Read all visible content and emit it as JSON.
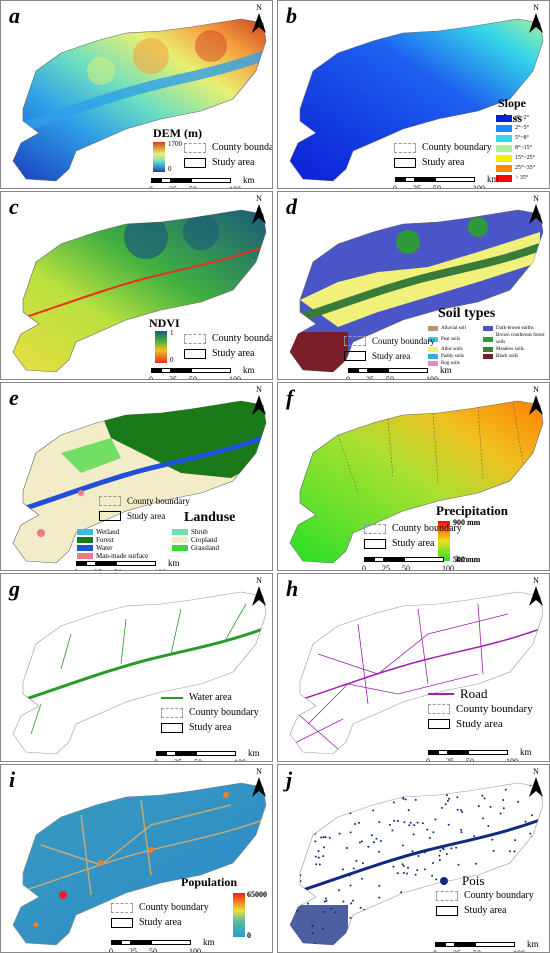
{
  "panels": {
    "a": {
      "letter": "a",
      "title": "DEM (m)",
      "max": "1700",
      "min": "0"
    },
    "b": {
      "letter": "b",
      "title": "Slope class",
      "classes": [
        {
          "label": "0°~2°",
          "color": "#0b1fd6"
        },
        {
          "label": "2°~5°",
          "color": "#1e88ff"
        },
        {
          "label": "5°~8°",
          "color": "#35d6e8"
        },
        {
          "label": "8°~15°",
          "color": "#a9f0a0"
        },
        {
          "label": "15°~25°",
          "color": "#f4f000"
        },
        {
          "label": "25°~35°",
          "color": "#ff8a00"
        },
        {
          "label": "> 35°",
          "color": "#ff0000"
        }
      ]
    },
    "c": {
      "letter": "c",
      "title": "NDVI",
      "max": "1",
      "min": "0"
    },
    "d": {
      "letter": "d",
      "title": "Soil types",
      "classes": [
        {
          "label": "Alluvial soil",
          "color": "#b59a6a"
        },
        {
          "label": "Dark-brown earths",
          "color": "#4a55c8"
        },
        {
          "label": "Peat soils",
          "color": "#3ec8e0"
        },
        {
          "label": "Brown coniferous forest soils",
          "color": "#2e9a3a"
        },
        {
          "label": "Albic soils",
          "color": "#f0f07a"
        },
        {
          "label": "Meadow soils",
          "color": "#3a7a3a"
        },
        {
          "label": "Paddy soils",
          "color": "#3aa8d8"
        },
        {
          "label": "Black soils",
          "color": "#7a1e2a"
        },
        {
          "label": "Bog soils",
          "color": "#e08ac8"
        }
      ]
    },
    "e": {
      "letter": "e",
      "title": "Landuse",
      "classes": [
        {
          "label": "Wetland",
          "color": "#3ab8e8"
        },
        {
          "label": "Shrub",
          "color": "#6ee0b0"
        },
        {
          "label": "Forest",
          "color": "#1a7a1a"
        },
        {
          "label": "Cropland",
          "color": "#f3ecc8"
        },
        {
          "label": "Water",
          "color": "#1e50d8"
        },
        {
          "label": "Grassland",
          "color": "#3ad83a"
        },
        {
          "label": "Man-made surface",
          "color": "#f07a8a"
        }
      ]
    },
    "f": {
      "letter": "f",
      "title": "Precipitation",
      "max": "900 mm",
      "min": "500 mm"
    },
    "g": {
      "letter": "g",
      "title": "Water area"
    },
    "h": {
      "letter": "h",
      "title": "Road"
    },
    "i": {
      "letter": "i",
      "title": "Population",
      "max": "65000",
      "min": "0"
    },
    "j": {
      "letter": "j",
      "title": "Pois"
    }
  },
  "common": {
    "county_boundary": "County boundary",
    "study_area": "Study area",
    "north": "N",
    "scale_labels": [
      "0",
      "25",
      "50",
      "100"
    ],
    "scale_unit": "km"
  },
  "colors": {
    "dem": [
      "#1a3fbf",
      "#2fa0e8",
      "#6ee0c0",
      "#e8f070",
      "#f4a040",
      "#d04020"
    ],
    "ndvi": [
      "#e83020",
      "#f0c020",
      "#b8e040",
      "#40b040",
      "#1a5a7a"
    ],
    "precip": [
      "#28e028",
      "#e8e020",
      "#ff8000",
      "#ff0000"
    ],
    "pop": [
      "#2a9ac8",
      "#5ab8a0",
      "#e8e040",
      "#f08020",
      "#e82020"
    ]
  }
}
